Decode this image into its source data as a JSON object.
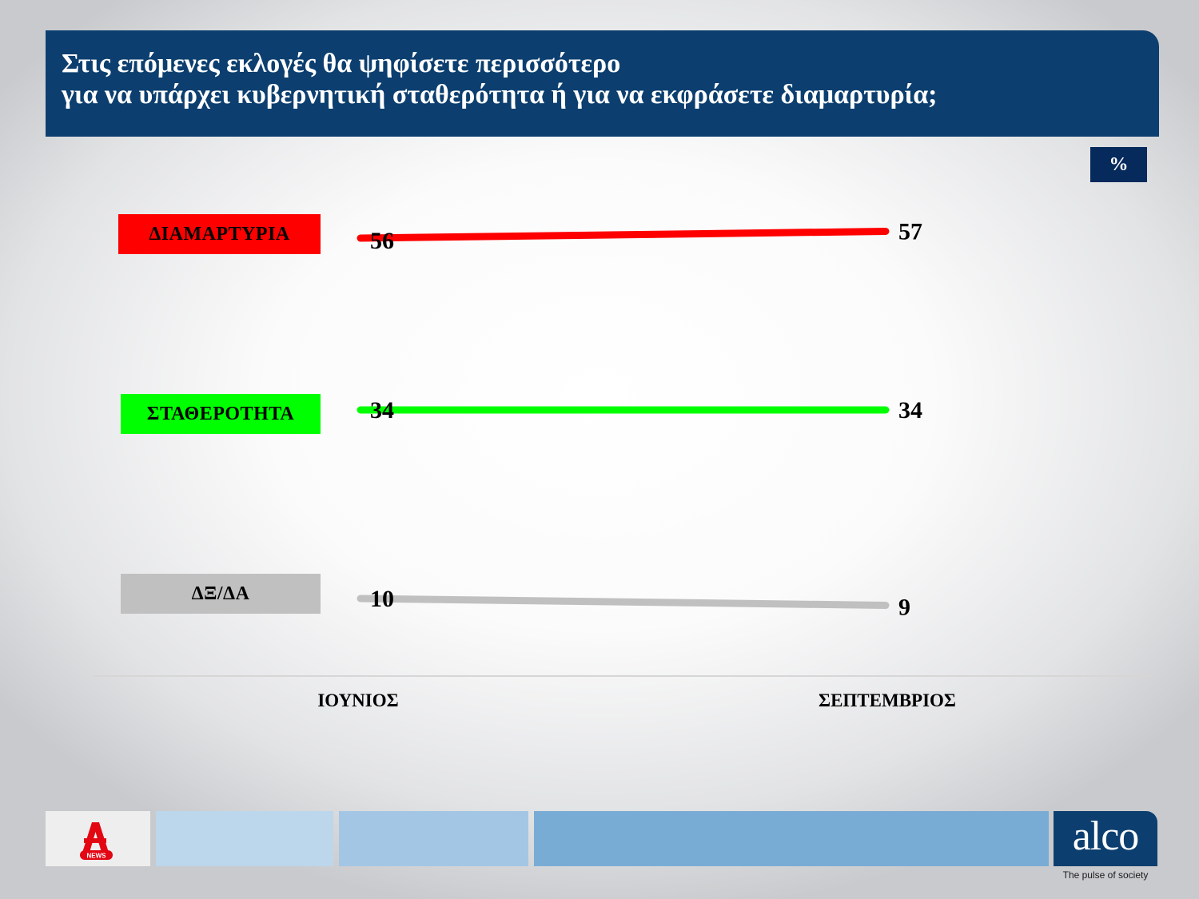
{
  "title": {
    "line1": "Στις επόμενες εκλογές θα ψηφίσετε περισσότερο",
    "line2": "για να υπάρχει κυβερνητική σταθερότητα ή για να εκφράσετε διαμαρτυρία;"
  },
  "unit_badge": "%",
  "chart_data": {
    "type": "line",
    "categories": [
      "ΙΟΥΝΙΟΣ",
      "ΣΕΠΤΕΜΒΡΙΟΣ"
    ],
    "series": [
      {
        "name": "ΔΙΑΜΑΡΤΥΡΙΑ",
        "values": [
          56,
          57
        ],
        "color": "#ff0000"
      },
      {
        "name": "ΣΤΑΘΕΡΟΤΗΤΑ",
        "values": [
          34,
          34
        ],
        "color": "#00ff00"
      },
      {
        "name": "ΔΞ/ΔΑ",
        "values": [
          10,
          9
        ],
        "color": "#c0c0c0"
      }
    ],
    "legend_placement": "left",
    "grid": false
  },
  "footer": {
    "left_logo_text": "NEWS",
    "right_logo_word": "alco",
    "right_logo_tagline": "The pulse of society",
    "colors": [
      "#eeeeee",
      "#bcd6ec",
      "#a3c6e4",
      "#79acd5",
      "#0c3f6f"
    ]
  }
}
